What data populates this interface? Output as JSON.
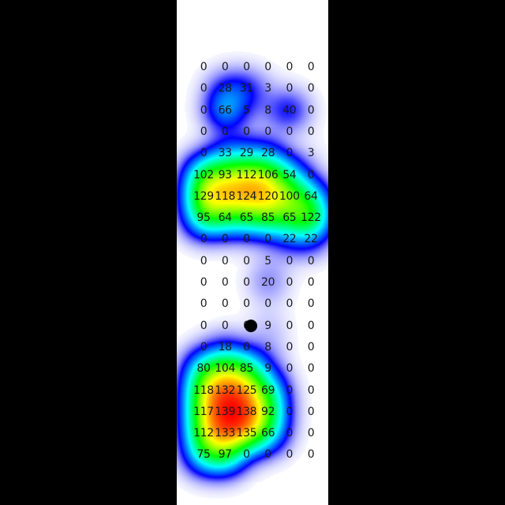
{
  "chart_data": {
    "type": "heatmap",
    "title": "",
    "xlabel": "",
    "ylabel": "",
    "rows": 19,
    "cols": 6,
    "values": [
      [
        0,
        0,
        0,
        0,
        0,
        0
      ],
      [
        0,
        28,
        31,
        3,
        0,
        0
      ],
      [
        0,
        66,
        5,
        8,
        40,
        0
      ],
      [
        0,
        0,
        0,
        0,
        0,
        0
      ],
      [
        0,
        33,
        29,
        28,
        0,
        3
      ],
      [
        102,
        93,
        112,
        106,
        54,
        0
      ],
      [
        129,
        118,
        124,
        120,
        100,
        64
      ],
      [
        95,
        64,
        65,
        85,
        65,
        122
      ],
      [
        0,
        0,
        0,
        0,
        22,
        22
      ],
      [
        0,
        0,
        0,
        5,
        0,
        0
      ],
      [
        0,
        0,
        0,
        20,
        0,
        0
      ],
      [
        0,
        0,
        0,
        0,
        0,
        0
      ],
      [
        0,
        0,
        0,
        9,
        0,
        0
      ],
      [
        0,
        18,
        0,
        8,
        0,
        0
      ],
      [
        80,
        104,
        85,
        9,
        0,
        0
      ],
      [
        118,
        132,
        125,
        69,
        0,
        0
      ],
      [
        117,
        139,
        138,
        92,
        0,
        0
      ],
      [
        112,
        133,
        135,
        66,
        0,
        0
      ],
      [
        75,
        97,
        0,
        0,
        0,
        0
      ]
    ],
    "colormap": [
      "#0000ff",
      "#00ffff",
      "#00ff00",
      "#ffff00",
      "#ff0000"
    ],
    "marker": {
      "row": 12,
      "col": 2,
      "color": "#000000"
    }
  }
}
